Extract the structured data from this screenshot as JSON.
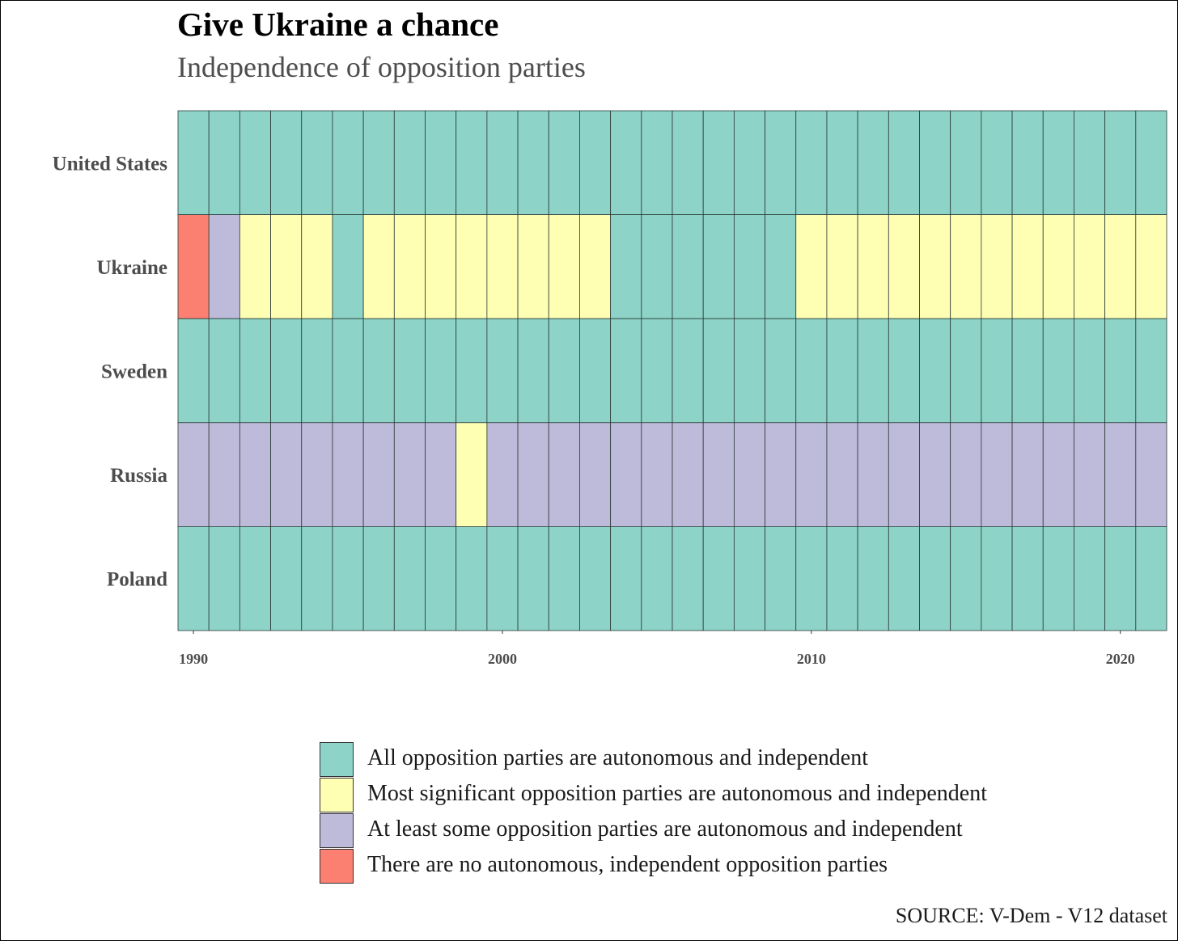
{
  "title": "Give Ukraine a chance",
  "subtitle": "Independence of opposition parties",
  "source": "SOURCE: V-Dem - V12 dataset",
  "colors": {
    "all": "#8dd3c7",
    "most": "#ffffb3",
    "some": "#bebada",
    "none": "#fb8072"
  },
  "chart_data": {
    "type": "heatmap",
    "title": "Give Ukraine a chance",
    "subtitle": "Independence of opposition parties",
    "x_ticks": [
      1990,
      2000,
      2010,
      2020
    ],
    "years": [
      1990,
      1991,
      1992,
      1993,
      1994,
      1995,
      1996,
      1997,
      1998,
      1999,
      2000,
      2001,
      2002,
      2003,
      2004,
      2005,
      2006,
      2007,
      2008,
      2009,
      2010,
      2011,
      2012,
      2013,
      2014,
      2015,
      2016,
      2017,
      2018,
      2019,
      2020,
      2021
    ],
    "categories": {
      "all": "All opposition parties are autonomous and independent",
      "most": "Most significant opposition parties are autonomous and independent",
      "some": "At least some opposition parties are autonomous and independent",
      "none": "There are no autonomous, independent opposition parties"
    },
    "legend_order": [
      "all",
      "most",
      "some",
      "none"
    ],
    "legend_position": "bottom",
    "grid": false,
    "rows": [
      {
        "country": "United States",
        "values": [
          "all",
          "all",
          "all",
          "all",
          "all",
          "all",
          "all",
          "all",
          "all",
          "all",
          "all",
          "all",
          "all",
          "all",
          "all",
          "all",
          "all",
          "all",
          "all",
          "all",
          "all",
          "all",
          "all",
          "all",
          "all",
          "all",
          "all",
          "all",
          "all",
          "all",
          "all",
          "all"
        ]
      },
      {
        "country": "Ukraine",
        "values": [
          "none",
          "some",
          "most",
          "most",
          "most",
          "all",
          "most",
          "most",
          "most",
          "most",
          "most",
          "most",
          "most",
          "most",
          "all",
          "all",
          "all",
          "all",
          "all",
          "all",
          "most",
          "most",
          "most",
          "most",
          "most",
          "most",
          "most",
          "most",
          "most",
          "most",
          "most",
          "most"
        ]
      },
      {
        "country": "Sweden",
        "values": [
          "all",
          "all",
          "all",
          "all",
          "all",
          "all",
          "all",
          "all",
          "all",
          "all",
          "all",
          "all",
          "all",
          "all",
          "all",
          "all",
          "all",
          "all",
          "all",
          "all",
          "all",
          "all",
          "all",
          "all",
          "all",
          "all",
          "all",
          "all",
          "all",
          "all",
          "all",
          "all"
        ]
      },
      {
        "country": "Russia",
        "values": [
          "some",
          "some",
          "some",
          "some",
          "some",
          "some",
          "some",
          "some",
          "some",
          "most",
          "some",
          "some",
          "some",
          "some",
          "some",
          "some",
          "some",
          "some",
          "some",
          "some",
          "some",
          "some",
          "some",
          "some",
          "some",
          "some",
          "some",
          "some",
          "some",
          "some",
          "some",
          "some"
        ]
      },
      {
        "country": "Poland",
        "values": [
          "all",
          "all",
          "all",
          "all",
          "all",
          "all",
          "all",
          "all",
          "all",
          "all",
          "all",
          "all",
          "all",
          "all",
          "all",
          "all",
          "all",
          "all",
          "all",
          "all",
          "all",
          "all",
          "all",
          "all",
          "all",
          "all",
          "all",
          "all",
          "all",
          "all",
          "all",
          "all"
        ]
      }
    ]
  }
}
